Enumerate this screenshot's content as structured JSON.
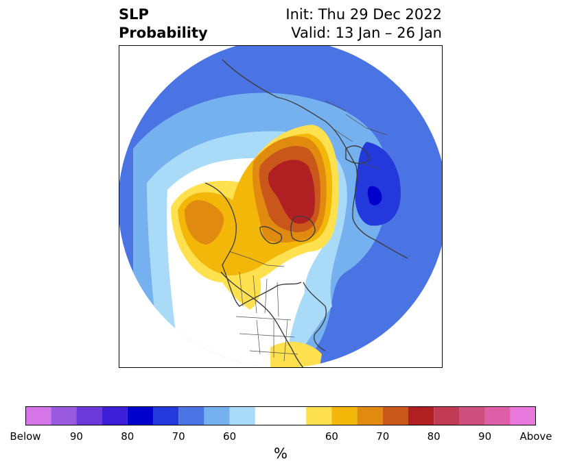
{
  "title": {
    "variable": "SLP",
    "kind": "Probability",
    "init": "Init: Thu 29 Dec 2022",
    "valid": "Valid: 13 Jan – 26 Jan"
  },
  "map": {
    "projection": "north-polar-stereographic",
    "region": "Northern Hemisphere",
    "features": [
      "coastlines",
      "country-borders",
      "us-state-borders",
      "canada-province-borders"
    ]
  },
  "colorbar": {
    "unit": "%",
    "colors": [
      "#d575e8",
      "#9a5adf",
      "#6b38d9",
      "#3b1ed6",
      "#0000cc",
      "#2439dc",
      "#4a73e3",
      "#76b1ef",
      "#a9daf8",
      "#ffffff",
      "#ffe14f",
      "#f3b70a",
      "#e08a10",
      "#c9561b",
      "#b01f22",
      "#c03a54",
      "#ce4e7e",
      "#de5fa7",
      "#e878dc"
    ],
    "tick_labels": [
      "Below",
      "90",
      "80",
      "70",
      "60",
      "60",
      "70",
      "80",
      "90",
      "Above"
    ]
  },
  "chart_data": {
    "type": "heatmap",
    "title": "SLP Probability",
    "subtitle": "Init: Thu 29 Dec 2022 / Valid: 13 Jan – 26 Jan",
    "unit": "%",
    "levels_below": [
      90,
      80,
      70,
      60
    ],
    "levels_above": [
      60,
      70,
      80,
      90
    ],
    "extremes": [
      "Below",
      "Above"
    ]
  }
}
